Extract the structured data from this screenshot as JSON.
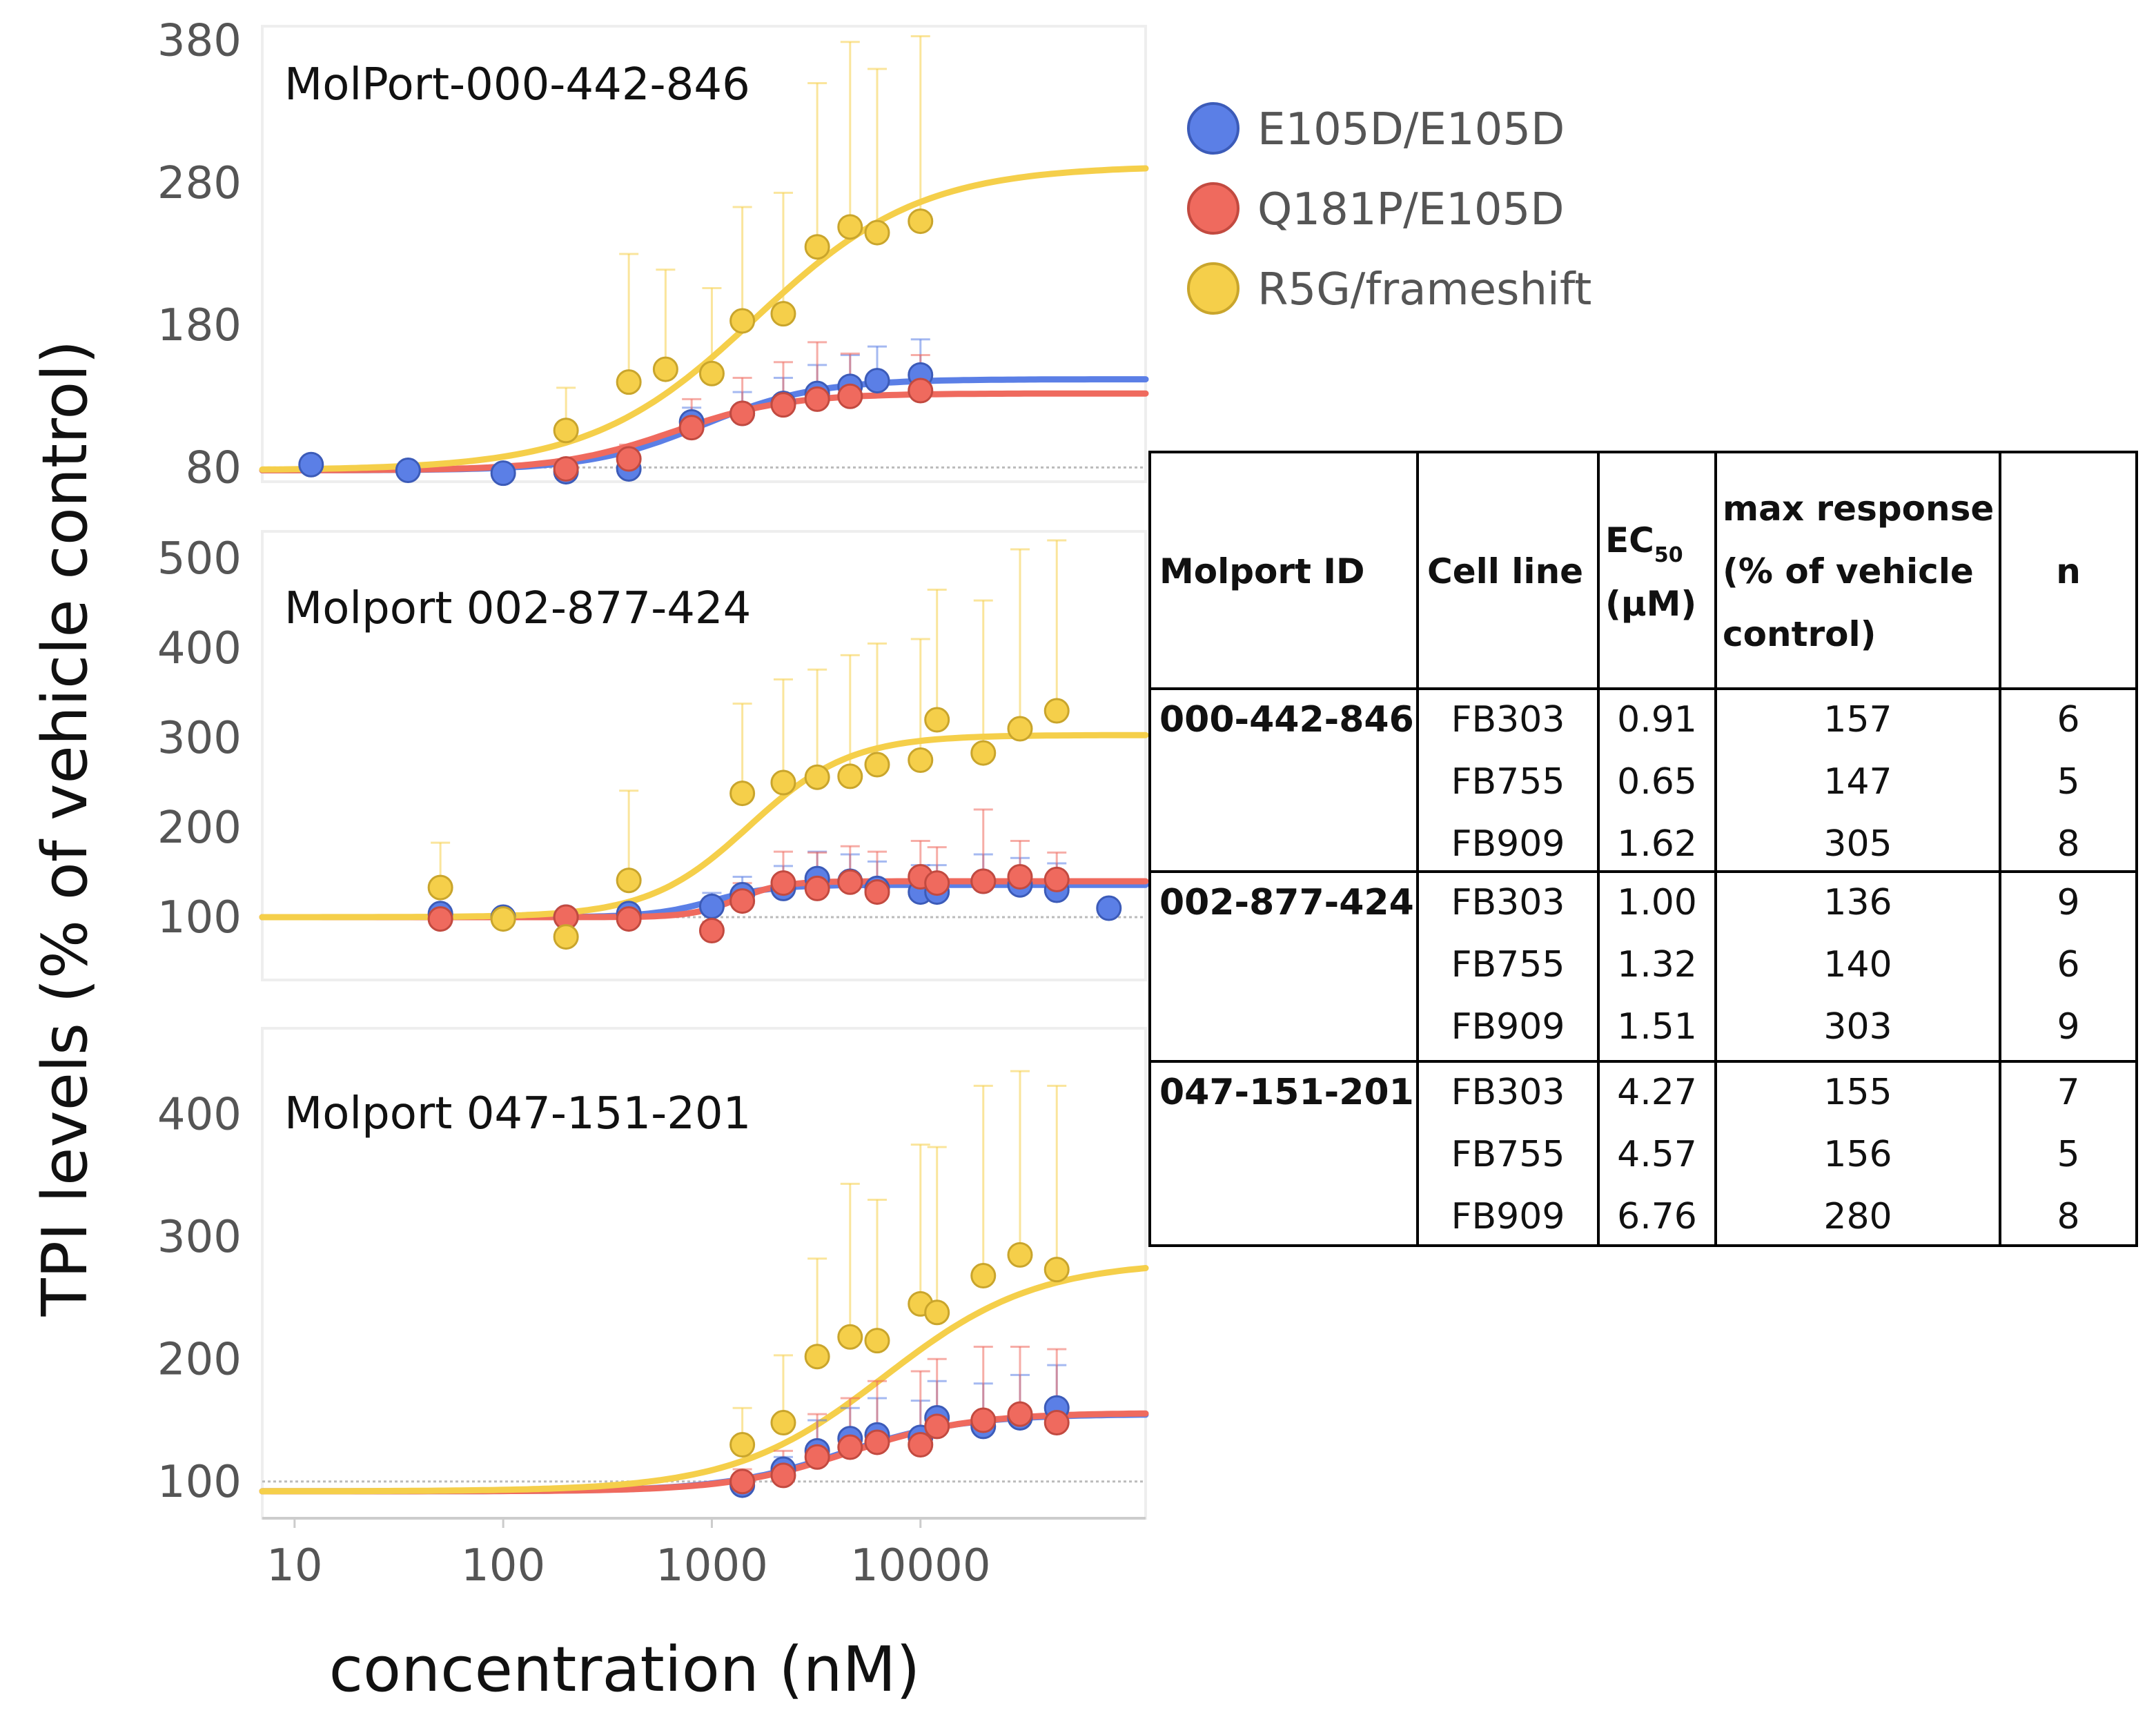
{
  "figure": {
    "y_axis_label": "TPI levels (% of vehicle control)",
    "x_axis_label": "concentration (nM)"
  },
  "legend": [
    {
      "label": "E105D/E105D",
      "color": "#5b7fe6"
    },
    {
      "label": "Q181P/E105D",
      "color": "#ef6a5e"
    },
    {
      "label": "R5G/frameshift",
      "color": "#f5cf4a"
    }
  ],
  "chart_data": [
    {
      "type": "scatter",
      "title": "MolPort-000-442-846",
      "xlabel": "concentration (nM)",
      "ylabel": "TPI levels (% of vehicle control)",
      "xscale": "log",
      "xlim": [
        7,
        120000
      ],
      "x_ticks": [
        10,
        100,
        1000,
        10000
      ],
      "x_tick_labels": [
        "10",
        "100",
        "1000",
        "10000"
      ],
      "ylim": [
        70,
        390
      ],
      "y_ticks": [
        80,
        180,
        280,
        380
      ],
      "reference_y": 80,
      "series": [
        {
          "name": "E105D/E105D",
          "color": "#5b7fe6",
          "x": [
            12,
            35,
            100,
            200,
            400,
            800,
            1400,
            2200,
            3200,
            4600,
            6200,
            10000
          ],
          "y": [
            82,
            78,
            76,
            77,
            79,
            112,
            118,
            125,
            132,
            137,
            141,
            145
          ],
          "err": [
            0,
            0,
            5,
            5,
            5,
            10,
            15,
            18,
            20,
            22,
            24,
            25
          ],
          "fit": {
            "bottom": 78,
            "top": 142,
            "ec50": 910,
            "hill": 1.6
          }
        },
        {
          "name": "Q181P/E105D",
          "color": "#ef6a5e",
          "x": [
            200,
            400,
            800,
            1400,
            2200,
            3200,
            4600,
            10000
          ],
          "y": [
            79,
            86,
            108,
            118,
            124,
            128,
            130,
            134
          ],
          "err": [
            5,
            10,
            20,
            25,
            30,
            40,
            30,
            25
          ],
          "fit": {
            "bottom": 78,
            "top": 132,
            "ec50": 650,
            "hill": 1.6
          }
        },
        {
          "name": "R5G/frameshift",
          "color": "#f5cf4a",
          "x": [
            200,
            400,
            600,
            1000,
            1400,
            2200,
            3200,
            4600,
            6200,
            10000
          ],
          "y": [
            106,
            140,
            149,
            146,
            183,
            188,
            235,
            249,
            245,
            253
          ],
          "err": [
            30,
            90,
            70,
            60,
            80,
            85,
            115,
            130,
            115,
            130
          ],
          "fit": {
            "bottom": 78,
            "top": 292,
            "ec50": 1620,
            "hill": 1.1
          }
        }
      ]
    },
    {
      "type": "scatter",
      "title": "Molport 002-877-424",
      "xscale": "log",
      "xlim": [
        7,
        120000
      ],
      "ylim": [
        30,
        530
      ],
      "y_ticks": [
        100,
        200,
        300,
        400,
        500
      ],
      "reference_y": 100,
      "series": [
        {
          "name": "E105D/E105D",
          "color": "#5b7fe6",
          "x": [
            50,
            100,
            200,
            400,
            1000,
            1400,
            2200,
            3200,
            4600,
            6200,
            10000,
            12000,
            20000,
            30000,
            45000,
            80000
          ],
          "y": [
            104,
            100,
            100,
            104,
            112,
            125,
            132,
            143,
            140,
            132,
            128,
            128,
            140,
            136,
            130,
            110
          ],
          "err": [
            0,
            0,
            0,
            0,
            15,
            20,
            25,
            30,
            30,
            30,
            30,
            30,
            30,
            30,
            30,
            0
          ],
          "fit": {
            "bottom": 100,
            "top": 136,
            "ec50": 1000,
            "hill": 3.0
          }
        },
        {
          "name": "Q181P/E105D",
          "color": "#ef6a5e",
          "x": [
            50,
            200,
            400,
            1000,
            1400,
            2200,
            3200,
            4600,
            6200,
            10000,
            12000,
            20000,
            30000,
            45000
          ],
          "y": [
            98,
            100,
            98,
            85,
            118,
            138,
            132,
            139,
            128,
            145,
            138,
            140,
            145,
            142
          ],
          "err": [
            0,
            0,
            10,
            10,
            20,
            35,
            40,
            40,
            45,
            40,
            40,
            80,
            40,
            30
          ],
          "fit": {
            "bottom": 100,
            "top": 140,
            "ec50": 1320,
            "hill": 4.0
          }
        },
        {
          "name": "R5G/frameshift",
          "color": "#f5cf4a",
          "x": [
            50,
            100,
            200,
            400,
            1400,
            2200,
            3200,
            4600,
            6200,
            10000,
            12000,
            20000,
            30000,
            45000
          ],
          "y": [
            133,
            98,
            78,
            141,
            238,
            250,
            256,
            257,
            270,
            275,
            320,
            283,
            310,
            330
          ],
          "err": [
            50,
            0,
            0,
            100,
            100,
            115,
            120,
            135,
            135,
            135,
            145,
            170,
            200,
            190
          ],
          "fit": {
            "bottom": 100,
            "top": 303,
            "ec50": 1510,
            "hill": 1.8
          }
        }
      ]
    },
    {
      "type": "scatter",
      "title": "Molport 047-151-201",
      "xscale": "log",
      "xlim": [
        7,
        120000
      ],
      "ylim": [
        70,
        470
      ],
      "y_ticks": [
        100,
        200,
        300,
        400
      ],
      "reference_y": 100,
      "series": [
        {
          "name": "E105D/E105D",
          "color": "#5b7fe6",
          "x": [
            1400,
            2200,
            3200,
            4600,
            6200,
            10000,
            12000,
            20000,
            30000,
            45000
          ],
          "y": [
            97,
            110,
            125,
            135,
            138,
            136,
            152,
            145,
            152,
            160
          ],
          "err": [
            5,
            10,
            25,
            25,
            30,
            30,
            30,
            35,
            35,
            35
          ],
          "fit": {
            "bottom": 92,
            "top": 155,
            "ec50": 4270,
            "hill": 1.5
          }
        },
        {
          "name": "Q181P/E105D",
          "color": "#ef6a5e",
          "x": [
            1400,
            2200,
            3200,
            4600,
            6200,
            10000,
            12000,
            20000,
            30000,
            45000
          ],
          "y": [
            100,
            105,
            120,
            128,
            132,
            130,
            145,
            150,
            155,
            148
          ],
          "err": [
            10,
            20,
            35,
            40,
            50,
            60,
            55,
            60,
            55,
            60
          ],
          "fit": {
            "bottom": 92,
            "top": 156,
            "ec50": 4570,
            "hill": 1.5
          }
        },
        {
          "name": "R5G/frameshift",
          "color": "#f5cf4a",
          "x": [
            1400,
            2200,
            3200,
            4600,
            6200,
            10000,
            12000,
            20000,
            30000,
            45000
          ],
          "y": [
            130,
            148,
            202,
            218,
            215,
            245,
            238,
            268,
            285,
            273
          ],
          "err": [
            30,
            55,
            80,
            125,
            115,
            130,
            135,
            155,
            150,
            150
          ],
          "fit": {
            "bottom": 92,
            "top": 280,
            "ec50": 6760,
            "hill": 1.2
          }
        }
      ]
    }
  ],
  "table": {
    "headers": {
      "molport_id": "Molport ID",
      "cell_line": "Cell line",
      "ec50_main": "EC",
      "ec50_sub": "50",
      "ec50_unit": "(μM)",
      "max_response": [
        "max response",
        "(% of vehicle",
        "control)"
      ],
      "n": "n"
    },
    "groups": [
      {
        "id": "000-442-846",
        "rows": [
          {
            "cell_line": "FB303",
            "ec50": "0.91",
            "max_response": "157",
            "n": "6"
          },
          {
            "cell_line": "FB755",
            "ec50": "0.65",
            "max_response": "147",
            "n": "5"
          },
          {
            "cell_line": "FB909",
            "ec50": "1.62",
            "max_response": "305",
            "n": "8"
          }
        ]
      },
      {
        "id": "002-877-424",
        "rows": [
          {
            "cell_line": "FB303",
            "ec50": "1.00",
            "max_response": "136",
            "n": "9"
          },
          {
            "cell_line": "FB755",
            "ec50": "1.32",
            "max_response": "140",
            "n": "6"
          },
          {
            "cell_line": "FB909",
            "ec50": "1.51",
            "max_response": "303",
            "n": "9"
          }
        ]
      },
      {
        "id": "047-151-201",
        "rows": [
          {
            "cell_line": "FB303",
            "ec50": "4.27",
            "max_response": "155",
            "n": "7"
          },
          {
            "cell_line": "FB755",
            "ec50": "4.57",
            "max_response": "156",
            "n": "5"
          },
          {
            "cell_line": "FB909",
            "ec50": "6.76",
            "max_response": "280",
            "n": "8"
          }
        ]
      }
    ]
  }
}
